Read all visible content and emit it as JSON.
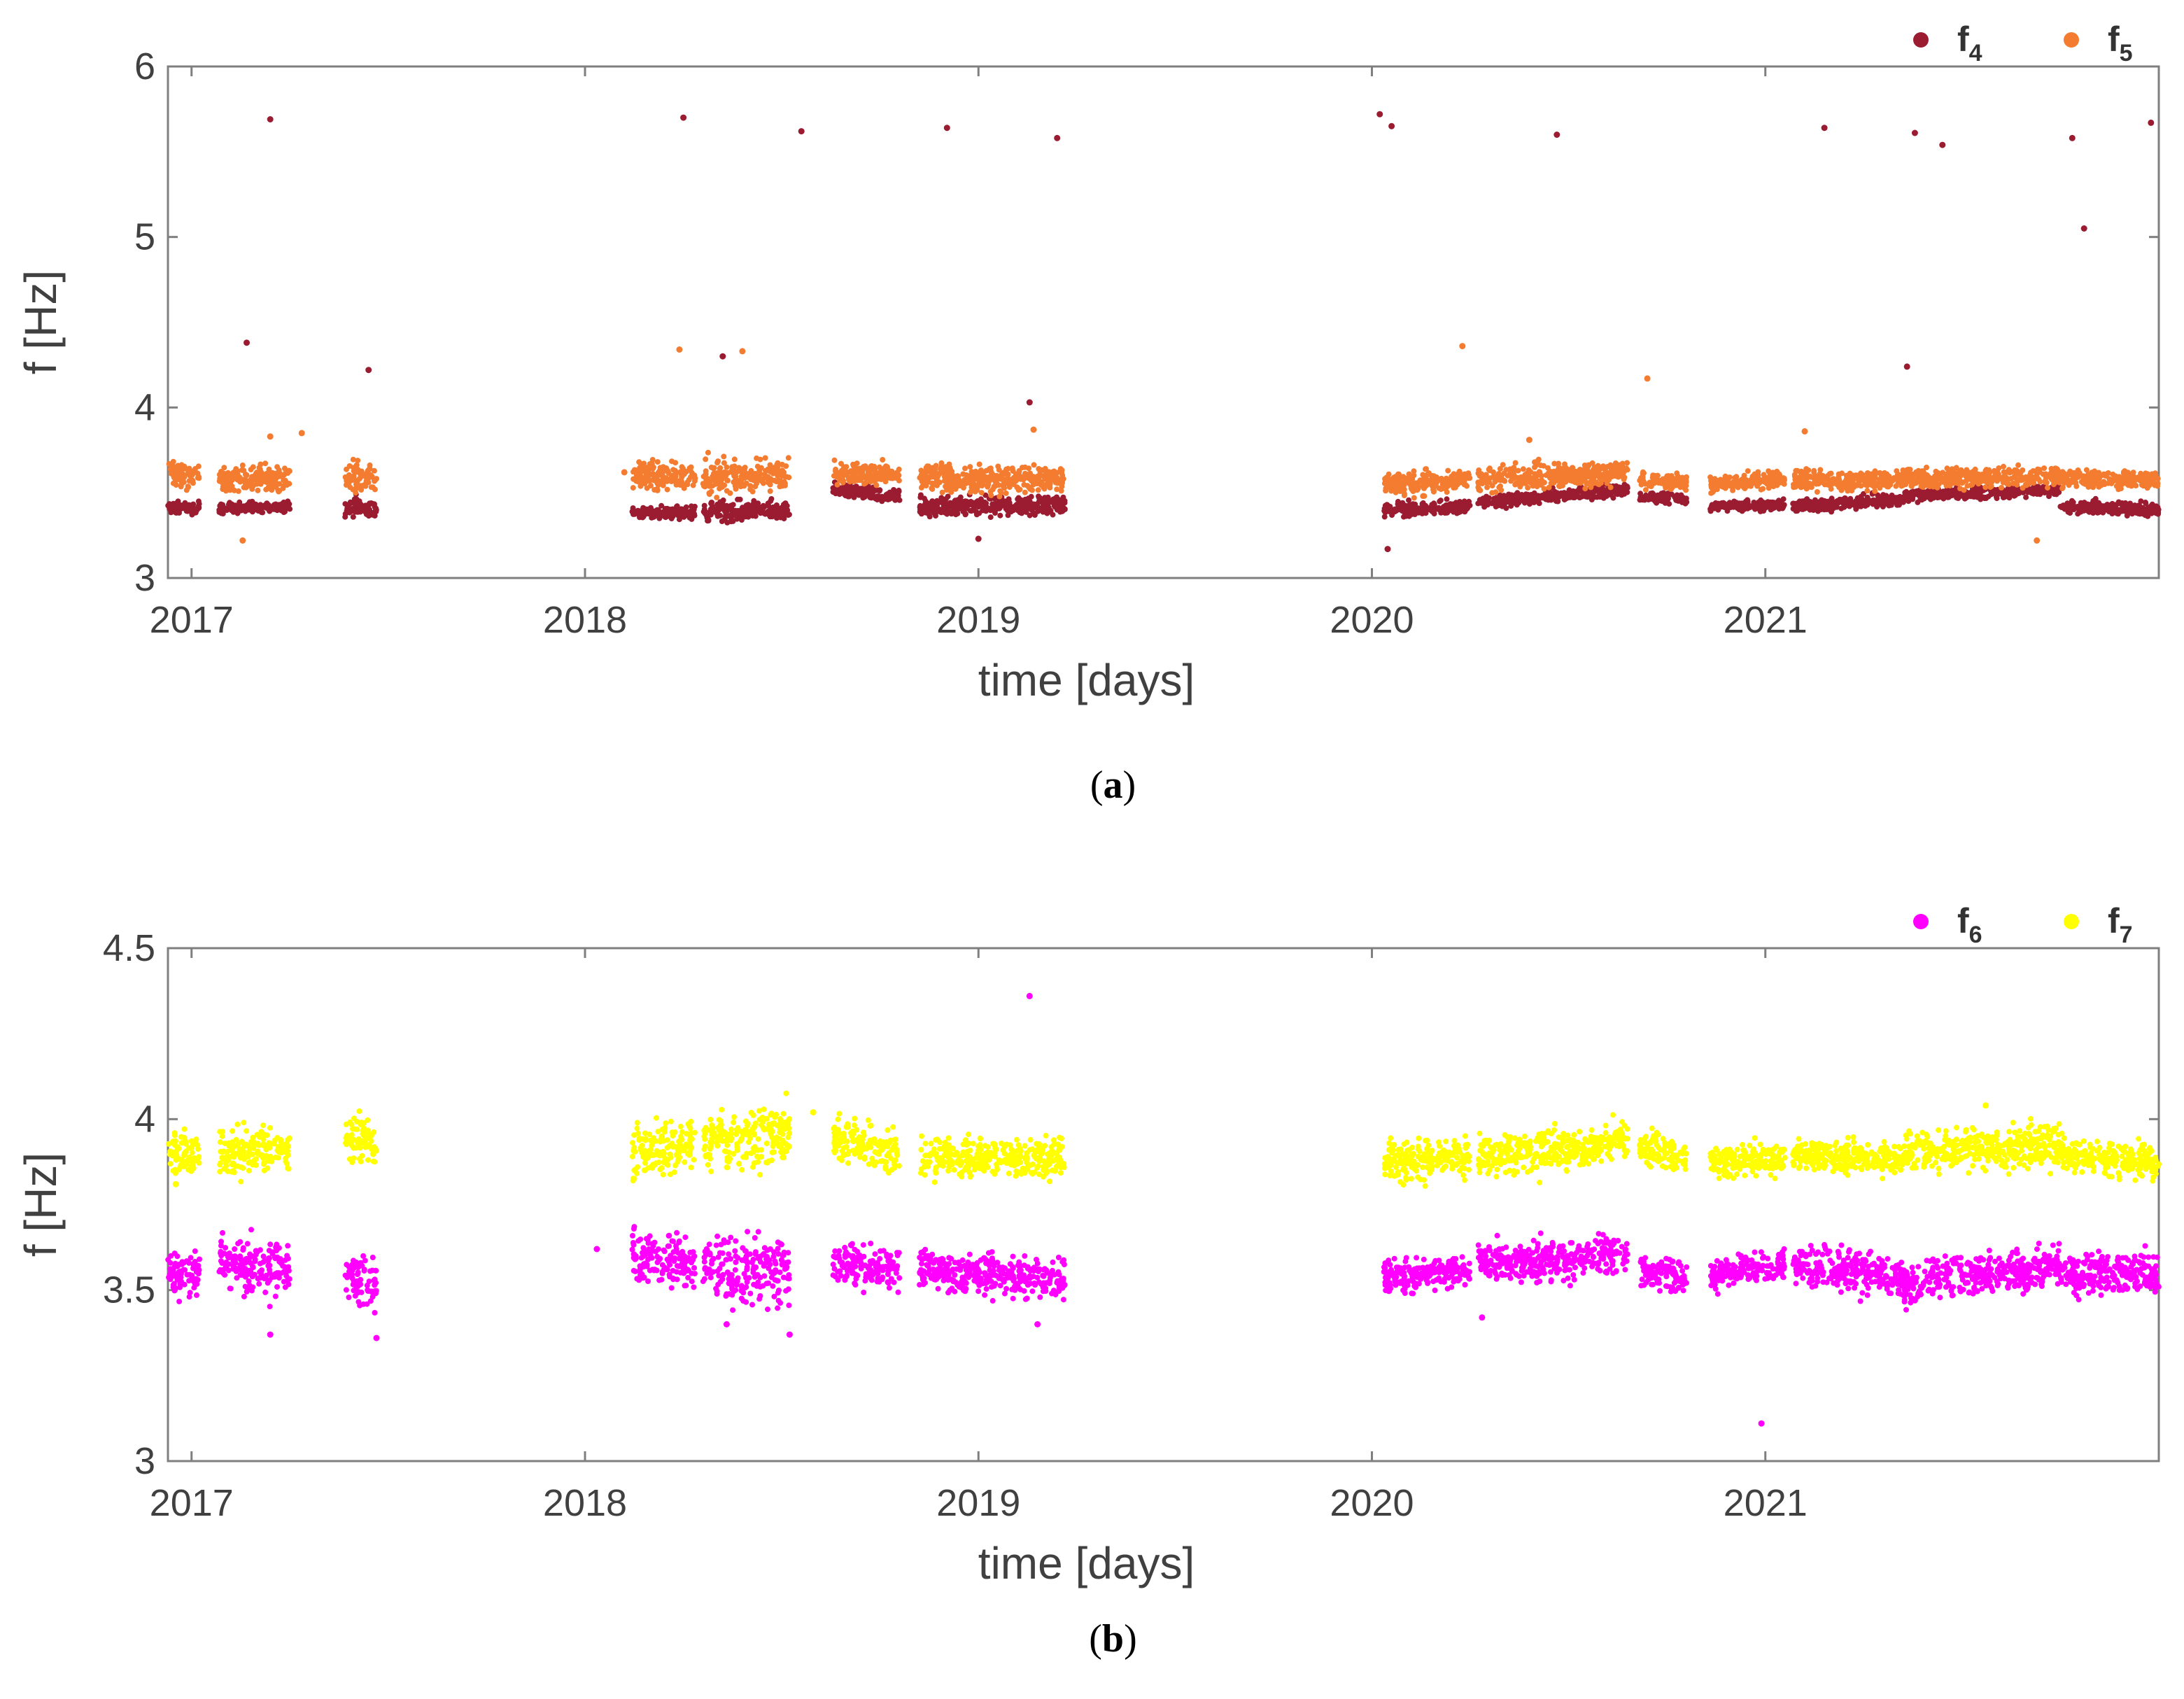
{
  "chart_data": [
    {
      "type": "scatter",
      "caption": {
        "open": "(",
        "letter": "a",
        "close": ")"
      },
      "xlabel": "time [days]",
      "ylabel": "f [Hz]",
      "xlim": [
        2016.94,
        2022.0
      ],
      "ylim": [
        3,
        6
      ],
      "xticks": [
        2017,
        2018,
        2019,
        2020,
        2021
      ],
      "xtick_labels": [
        "2017",
        "2018",
        "2019",
        "2020",
        "2021"
      ],
      "yticks": [
        3,
        4,
        5,
        6
      ],
      "ytick_labels": [
        "3",
        "4",
        "5",
        "6"
      ],
      "legend_position": "top-right",
      "series": [
        {
          "name": "f4",
          "label_main": "f",
          "label_sub": "4",
          "color": "#9b1c31",
          "segments": [
            {
              "start": 2016.94,
              "end": 2017.02,
              "levels": [
                3.41,
                3.41
              ],
              "spread": 0.06
            },
            {
              "start": 2017.07,
              "end": 2017.25,
              "levels": [
                3.41,
                3.42
              ],
              "spread": 0.05
            },
            {
              "start": 2017.39,
              "end": 2017.47,
              "levels": [
                3.42,
                3.4
              ],
              "spread": 0.1
            },
            {
              "start": 2018.12,
              "end": 2018.28,
              "levels": [
                3.38,
                3.39
              ],
              "spread": 0.06
            },
            {
              "start": 2018.3,
              "end": 2018.52,
              "levels": [
                3.38,
                3.4
              ],
              "spread": 0.1
            },
            {
              "start": 2018.63,
              "end": 2018.8,
              "levels": [
                3.52,
                3.48
              ],
              "spread": 0.06
            },
            {
              "start": 2018.85,
              "end": 2019.22,
              "levels": [
                3.42,
                3.43
              ],
              "spread": 0.1
            },
            {
              "start": 2020.03,
              "end": 2020.25,
              "levels": [
                3.4,
                3.42
              ],
              "spread": 0.06
            },
            {
              "start": 2020.27,
              "end": 2020.65,
              "levels": [
                3.44,
                3.52
              ],
              "spread": 0.06
            },
            {
              "start": 2020.68,
              "end": 2020.8,
              "levels": [
                3.48,
                3.46
              ],
              "spread": 0.05
            },
            {
              "start": 2020.86,
              "end": 2021.05,
              "levels": [
                3.42,
                3.43
              ],
              "spread": 0.05
            },
            {
              "start": 2021.07,
              "end": 2021.35,
              "levels": [
                3.42,
                3.46
              ],
              "spread": 0.06
            },
            {
              "start": 2021.35,
              "end": 2021.75,
              "levels": [
                3.48,
                3.52
              ],
              "spread": 0.06
            },
            {
              "start": 2021.75,
              "end": 2022.0,
              "levels": [
                3.42,
                3.4
              ],
              "spread": 0.06
            }
          ],
          "outliers": [
            [
              2017.2,
              5.69
            ],
            [
              2018.25,
              5.7
            ],
            [
              2018.55,
              5.62
            ],
            [
              2018.92,
              5.64
            ],
            [
              2019.2,
              5.58
            ],
            [
              2020.02,
              5.72
            ],
            [
              2020.05,
              5.65
            ],
            [
              2020.47,
              5.6
            ],
            [
              2021.15,
              5.64
            ],
            [
              2021.38,
              5.61
            ],
            [
              2021.45,
              5.54
            ],
            [
              2021.78,
              5.58
            ],
            [
              2021.81,
              5.05
            ],
            [
              2021.98,
              5.67
            ],
            [
              2017.14,
              4.38
            ],
            [
              2017.45,
              4.22
            ],
            [
              2018.35,
              4.3
            ],
            [
              2019.13,
              4.03
            ],
            [
              2021.36,
              4.24
            ],
            [
              2019.0,
              3.23
            ],
            [
              2020.04,
              3.17
            ]
          ]
        },
        {
          "name": "f5",
          "label_main": "f",
          "label_sub": "5",
          "color": "#f47c30",
          "segments": [
            {
              "start": 2016.94,
              "end": 2017.02,
              "levels": [
                3.62,
                3.6
              ],
              "spread": 0.12
            },
            {
              "start": 2017.07,
              "end": 2017.25,
              "levels": [
                3.58,
                3.58
              ],
              "spread": 0.14
            },
            {
              "start": 2017.39,
              "end": 2017.47,
              "levels": [
                3.6,
                3.58
              ],
              "spread": 0.14
            },
            {
              "start": 2018.12,
              "end": 2018.28,
              "levels": [
                3.6,
                3.6
              ],
              "spread": 0.14
            },
            {
              "start": 2018.3,
              "end": 2018.52,
              "levels": [
                3.6,
                3.6
              ],
              "spread": 0.16
            },
            {
              "start": 2018.63,
              "end": 2018.8,
              "levels": [
                3.62,
                3.6
              ],
              "spread": 0.1
            },
            {
              "start": 2018.85,
              "end": 2019.22,
              "levels": [
                3.58,
                3.58
              ],
              "spread": 0.14
            },
            {
              "start": 2020.03,
              "end": 2020.25,
              "levels": [
                3.55,
                3.57
              ],
              "spread": 0.12
            },
            {
              "start": 2020.27,
              "end": 2020.65,
              "levels": [
                3.58,
                3.62
              ],
              "spread": 0.12
            },
            {
              "start": 2020.68,
              "end": 2020.8,
              "levels": [
                3.58,
                3.56
              ],
              "spread": 0.08
            },
            {
              "start": 2020.86,
              "end": 2021.05,
              "levels": [
                3.55,
                3.58
              ],
              "spread": 0.08
            },
            {
              "start": 2021.07,
              "end": 2021.35,
              "levels": [
                3.58,
                3.57
              ],
              "spread": 0.1
            },
            {
              "start": 2021.35,
              "end": 2021.75,
              "levels": [
                3.58,
                3.6
              ],
              "spread": 0.1
            },
            {
              "start": 2021.75,
              "end": 2022.0,
              "levels": [
                3.58,
                3.58
              ],
              "spread": 0.08
            }
          ],
          "outliers": [
            [
              2017.28,
              3.85
            ],
            [
              2017.2,
              3.83
            ],
            [
              2018.1,
              3.62
            ],
            [
              2018.24,
              4.34
            ],
            [
              2018.4,
              4.33
            ],
            [
              2019.14,
              3.87
            ],
            [
              2020.23,
              4.36
            ],
            [
              2020.7,
              4.17
            ],
            [
              2021.1,
              3.86
            ],
            [
              2021.69,
              3.22
            ],
            [
              2017.13,
              3.22
            ],
            [
              2020.4,
              3.81
            ]
          ]
        }
      ]
    },
    {
      "type": "scatter",
      "caption": {
        "open": "(",
        "letter": "b",
        "close": ")"
      },
      "xlabel": "time [days]",
      "ylabel": "f [Hz]",
      "xlim": [
        2016.94,
        2022.0
      ],
      "ylim": [
        3,
        4.5
      ],
      "xticks": [
        2017,
        2018,
        2019,
        2020,
        2021
      ],
      "xtick_labels": [
        "2017",
        "2018",
        "2019",
        "2020",
        "2021"
      ],
      "yticks": [
        3,
        3.5,
        4,
        4.5
      ],
      "ytick_labels": [
        "3",
        "3.5",
        "4",
        "4.5"
      ],
      "legend_position": "top-right",
      "series": [
        {
          "name": "f6",
          "label_main": "f",
          "label_sub": "6",
          "color": "#ff00ff",
          "segments": [
            {
              "start": 2016.94,
              "end": 2017.02,
              "levels": [
                3.55,
                3.55
              ],
              "spread": 0.1
            },
            {
              "start": 2017.07,
              "end": 2017.25,
              "levels": [
                3.58,
                3.55
              ],
              "spread": 0.14
            },
            {
              "start": 2017.39,
              "end": 2017.47,
              "levels": [
                3.55,
                3.52
              ],
              "spread": 0.14
            },
            {
              "start": 2018.12,
              "end": 2018.28,
              "levels": [
                3.6,
                3.58
              ],
              "spread": 0.14
            },
            {
              "start": 2018.3,
              "end": 2018.52,
              "levels": [
                3.58,
                3.55
              ],
              "spread": 0.18
            },
            {
              "start": 2018.63,
              "end": 2018.8,
              "levels": [
                3.58,
                3.56
              ],
              "spread": 0.1
            },
            {
              "start": 2018.85,
              "end": 2019.22,
              "levels": [
                3.56,
                3.53
              ],
              "spread": 0.1
            },
            {
              "start": 2020.03,
              "end": 2020.25,
              "levels": [
                3.54,
                3.55
              ],
              "spread": 0.08
            },
            {
              "start": 2020.27,
              "end": 2020.65,
              "levels": [
                3.58,
                3.6
              ],
              "spread": 0.1
            },
            {
              "start": 2020.68,
              "end": 2020.8,
              "levels": [
                3.56,
                3.54
              ],
              "spread": 0.08
            },
            {
              "start": 2020.86,
              "end": 2021.05,
              "levels": [
                3.54,
                3.58
              ],
              "spread": 0.08
            },
            {
              "start": 2021.07,
              "end": 2021.35,
              "levels": [
                3.58,
                3.54
              ],
              "spread": 0.1
            },
            {
              "start": 2021.35,
              "end": 2021.75,
              "levels": [
                3.52,
                3.57
              ],
              "spread": 0.1
            },
            {
              "start": 2021.75,
              "end": 2022.0,
              "levels": [
                3.55,
                3.55
              ],
              "spread": 0.1
            }
          ],
          "outliers": [
            [
              2019.13,
              4.36
            ],
            [
              2020.99,
              3.11
            ],
            [
              2018.03,
              3.62
            ],
            [
              2017.2,
              3.37
            ],
            [
              2017.47,
              3.36
            ],
            [
              2018.52,
              3.37
            ],
            [
              2020.28,
              3.42
            ],
            [
              2021.38,
              3.47
            ],
            [
              2019.15,
              3.4
            ],
            [
              2018.36,
              3.4
            ]
          ]
        },
        {
          "name": "f7",
          "label_main": "f",
          "label_sub": "7",
          "color": "#ffff00",
          "segments": [
            {
              "start": 2016.94,
              "end": 2017.02,
              "levels": [
                3.9,
                3.9
              ],
              "spread": 0.1
            },
            {
              "start": 2017.07,
              "end": 2017.25,
              "levels": [
                3.9,
                3.91
              ],
              "spread": 0.12
            },
            {
              "start": 2017.39,
              "end": 2017.47,
              "levels": [
                3.95,
                3.93
              ],
              "spread": 0.12
            },
            {
              "start": 2018.12,
              "end": 2018.28,
              "levels": [
                3.9,
                3.92
              ],
              "spread": 0.12
            },
            {
              "start": 2018.3,
              "end": 2018.52,
              "levels": [
                3.93,
                3.96
              ],
              "spread": 0.14
            },
            {
              "start": 2018.63,
              "end": 2018.8,
              "levels": [
                3.94,
                3.9
              ],
              "spread": 0.1
            },
            {
              "start": 2018.85,
              "end": 2019.22,
              "levels": [
                3.89,
                3.89
              ],
              "spread": 0.1
            },
            {
              "start": 2020.03,
              "end": 2020.25,
              "levels": [
                3.88,
                3.89
              ],
              "spread": 0.1
            },
            {
              "start": 2020.27,
              "end": 2020.65,
              "levels": [
                3.89,
                3.93
              ],
              "spread": 0.1
            },
            {
              "start": 2020.68,
              "end": 2020.8,
              "levels": [
                3.91,
                3.9
              ],
              "spread": 0.08
            },
            {
              "start": 2020.86,
              "end": 2021.05,
              "levels": [
                3.87,
                3.89
              ],
              "spread": 0.08
            },
            {
              "start": 2021.07,
              "end": 2021.35,
              "levels": [
                3.9,
                3.88
              ],
              "spread": 0.08
            },
            {
              "start": 2021.35,
              "end": 2021.75,
              "levels": [
                3.9,
                3.93
              ],
              "spread": 0.1
            },
            {
              "start": 2021.75,
              "end": 2022.0,
              "levels": [
                3.9,
                3.87
              ],
              "spread": 0.08
            }
          ],
          "outliers": [
            [
              2016.96,
              3.81
            ],
            [
              2018.58,
              4.02
            ],
            [
              2021.56,
              4.04
            ]
          ]
        }
      ]
    }
  ]
}
